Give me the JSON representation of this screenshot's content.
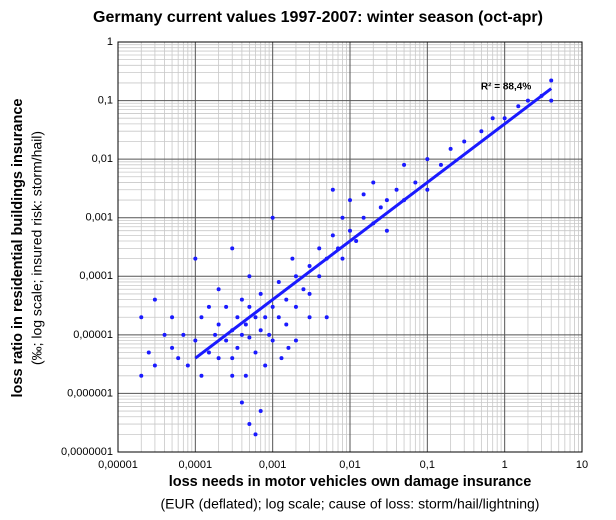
{
  "chart_data": {
    "type": "scatter",
    "title": "Germany current values 1997-2007: winter season (oct-apr)",
    "x_label": "loss needs in motor vehicles own damage insurance",
    "x_sublabel": "(EUR (deflated); log scale; cause of loss: storm/hail/lightning)",
    "y_label": "loss ratio in residential buildings insurance",
    "y_sublabel": "(‰; log scale; insured risk: storm/hail)",
    "annotation": "R² = 88,4%",
    "color": "#1a1aff",
    "log_x": true,
    "log_y": true,
    "grid": true,
    "xlim": [
      1e-05,
      10
    ],
    "ylim": [
      1e-07,
      1
    ],
    "xticks": [
      {
        "value": 1e-05,
        "label": "0,00001"
      },
      {
        "value": 0.0001,
        "label": "0,0001"
      },
      {
        "value": 0.001,
        "label": "0,001"
      },
      {
        "value": 0.01,
        "label": "0,01"
      },
      {
        "value": 0.1,
        "label": "0,1"
      },
      1,
      10
    ],
    "yticks": [
      {
        "value": 1e-07,
        "label": "0,0000001"
      },
      {
        "value": 1e-06,
        "label": "0,000001"
      },
      {
        "value": 1e-05,
        "label": "0,00001"
      },
      {
        "value": 0.0001,
        "label": "0,0001"
      },
      {
        "value": 0.001,
        "label": "0,001"
      },
      {
        "value": 0.01,
        "label": "0,01"
      },
      {
        "value": 0.1,
        "label": "0,1"
      },
      1
    ],
    "trendline": {
      "x": [
        0.0001,
        4
      ],
      "y": [
        4e-06,
        0.16
      ]
    },
    "x": [
      2e-05,
      2e-05,
      2.5e-05,
      3e-05,
      3e-05,
      4e-05,
      5e-05,
      5e-05,
      6e-05,
      7e-05,
      8e-05,
      0.0001,
      0.0001,
      0.00012,
      0.00012,
      0.00015,
      0.00015,
      0.00018,
      0.0002,
      0.0002,
      0.0002,
      0.00025,
      0.00025,
      0.0003,
      0.0003,
      0.0003,
      0.00035,
      0.00035,
      0.0004,
      0.0004,
      0.0004,
      0.00045,
      0.0005,
      0.0005,
      0.0005,
      0.0005,
      0.0006,
      0.0006,
      0.0006,
      0.0007,
      0.0007,
      0.0007,
      0.0008,
      0.0008,
      0.0009,
      0.001,
      0.001,
      0.001,
      0.0012,
      0.0012,
      0.0013,
      0.0015,
      0.0015,
      0.0018,
      0.002,
      0.002,
      0.002,
      0.0025,
      0.003,
      0.003,
      0.003,
      0.004,
      0.004,
      0.005,
      0.005,
      0.006,
      0.006,
      0.007,
      0.008,
      0.008,
      0.01,
      0.01,
      0.012,
      0.015,
      0.015,
      0.02,
      0.02,
      0.025,
      0.03,
      0.03,
      0.04,
      0.05,
      0.05,
      0.07,
      0.1,
      0.1,
      0.15,
      0.2,
      0.3,
      0.5,
      0.7,
      1,
      1.5,
      2,
      3,
      4,
      4,
      0.0003,
      0.00045,
      0.0016
    ],
    "values": [
      2e-06,
      2e-05,
      5e-06,
      3e-06,
      4e-05,
      1e-05,
      6e-06,
      2e-05,
      4e-06,
      1e-05,
      3e-06,
      0.0002,
      8e-06,
      2e-05,
      2e-06,
      5e-06,
      3e-05,
      1e-05,
      4e-06,
      6e-05,
      1.5e-05,
      8e-06,
      3e-05,
      0.0003,
      1.2e-05,
      2e-06,
      2e-05,
      6e-06,
      7e-07,
      1e-05,
      4e-05,
      1.5e-05,
      3e-07,
      9e-06,
      3e-05,
      0.0001,
      2e-07,
      2e-05,
      5e-06,
      5e-07,
      1.2e-05,
      5e-05,
      2e-05,
      3e-06,
      1e-05,
      0.001,
      3e-05,
      8e-06,
      2e-05,
      8e-05,
      4e-06,
      4e-05,
      1.5e-05,
      0.0002,
      0.0001,
      3e-05,
      8e-06,
      6e-05,
      5e-05,
      0.00015,
      2e-05,
      0.0003,
      0.0001,
      2e-05,
      0.0002,
      0.003,
      0.0005,
      0.0003,
      0.001,
      0.0002,
      0.0006,
      0.002,
      0.0004,
      0.001,
      0.0025,
      0.0008,
      0.004,
      0.0015,
      0.002,
      0.0006,
      0.003,
      0.008,
      0.002,
      0.004,
      0.01,
      0.003,
      0.008,
      0.015,
      0.02,
      0.03,
      0.05,
      0.05,
      0.08,
      0.1,
      0.12,
      0.22,
      0.1,
      4e-06,
      2e-06,
      6e-06
    ]
  }
}
